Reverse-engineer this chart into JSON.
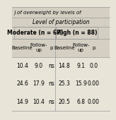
{
  "title_partial": ") of overweight by levels of participation in physi",
  "subheader": "Level of participation",
  "col_groups": [
    {
      "label": "Moderate (n = 67)",
      "cols": [
        "Baseline",
        "Follow-\nup",
        "p"
      ]
    },
    {
      "label": "High (n = 88)",
      "cols": [
        "Baseline",
        "Follow-\nup",
        "p"
      ]
    }
  ],
  "rows": [
    [
      "10.4",
      "9.0",
      "ns",
      "14.8",
      "9.1",
      "0.0"
    ],
    [
      "24.6",
      "17.9",
      "ns",
      "25.3",
      "15.9",
      "0.00"
    ],
    [
      "14.9",
      "10.4",
      "ns",
      "20.5",
      "6.8",
      "0.00"
    ]
  ],
  "bg_color": "#e8e4d8",
  "header_bg": "#d4cfc2",
  "line_color": "#999999",
  "text_color": "#000000",
  "font_size": 5.5,
  "title_font_size": 5.0
}
